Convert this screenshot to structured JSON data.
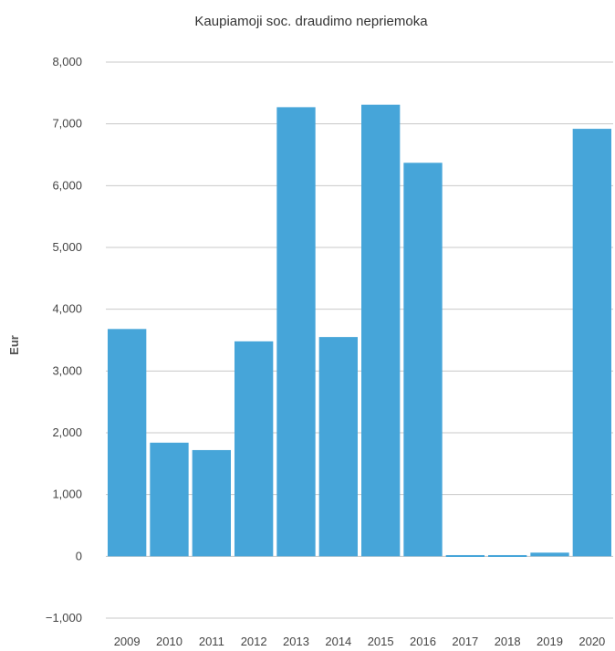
{
  "chart_data": {
    "type": "bar",
    "title": "Kaupiamoji soc. draudimo nepriemoka",
    "xlabel": "",
    "ylabel": "Eur",
    "categories": [
      "2009",
      "2010",
      "2011",
      "2012",
      "2013",
      "2014",
      "2015",
      "2016",
      "2017",
      "2018",
      "2019",
      "2020"
    ],
    "values": [
      3680,
      1840,
      1720,
      3480,
      7270,
      3550,
      7310,
      6370,
      20,
      20,
      60,
      6920
    ],
    "ylim": [
      -1000,
      8000
    ],
    "yticks": [
      -1000,
      0,
      1000,
      2000,
      3000,
      4000,
      5000,
      6000,
      7000,
      8000
    ],
    "ytick_labels": [
      "−1,000",
      "0",
      "1,000",
      "2,000",
      "3,000",
      "4,000",
      "5,000",
      "6,000",
      "7,000",
      "8,000"
    ],
    "grid": true,
    "legend": "none",
    "bar_color": "#46a5d9"
  }
}
